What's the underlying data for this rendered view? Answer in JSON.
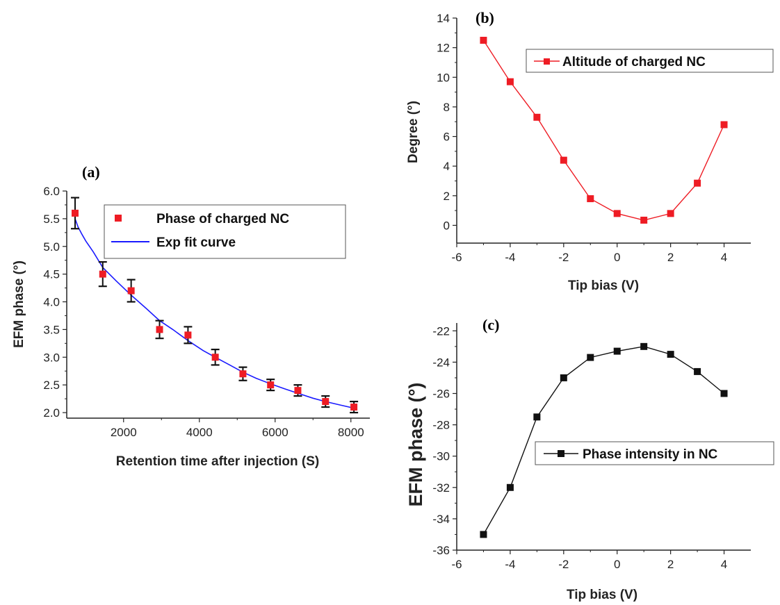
{
  "chart_data": [
    {
      "panel": "(a)",
      "type": "scatter",
      "xlabel": "Retention time after injection (S)",
      "ylabel": "EFM phase (°)",
      "xlim": [
        500,
        8500
      ],
      "ylim": [
        1.9,
        6.0
      ],
      "xticks": [
        2000,
        4000,
        6000,
        8000
      ],
      "yticks": [
        2.0,
        2.5,
        3.0,
        3.5,
        4.0,
        4.5,
        5.0,
        5.5,
        6.0
      ],
      "legend_position": "top-right",
      "marker_color": "#ee1c24",
      "fit_color": "#1a1aff",
      "series": [
        {
          "name": "Phase of charged NC",
          "x": [
            720,
            1450,
            2200,
            2950,
            3700,
            4420,
            5150,
            5880,
            6600,
            7330,
            8080
          ],
          "y": [
            5.6,
            4.5,
            4.2,
            3.5,
            3.4,
            3.0,
            2.7,
            2.5,
            2.4,
            2.2,
            2.1
          ],
          "err": [
            0.28,
            0.22,
            0.2,
            0.16,
            0.15,
            0.14,
            0.12,
            0.1,
            0.1,
            0.1,
            0.1
          ]
        },
        {
          "name": "Exp fit curve",
          "x": [
            720,
            800,
            900,
            1000,
            1200,
            1450,
            1800,
            2200,
            2600,
            2950,
            3300,
            3700,
            4100,
            4420,
            4800,
            5150,
            5500,
            5880,
            6250,
            6600,
            7000,
            7330,
            7700,
            8080
          ],
          "y": [
            5.5,
            5.35,
            5.22,
            5.1,
            4.9,
            4.62,
            4.38,
            4.12,
            3.88,
            3.66,
            3.5,
            3.3,
            3.12,
            3.0,
            2.86,
            2.73,
            2.62,
            2.52,
            2.43,
            2.35,
            2.26,
            2.2,
            2.14,
            2.08
          ]
        }
      ]
    },
    {
      "panel": "(b)",
      "type": "line",
      "xlabel": "Tip bias (V)",
      "ylabel": "Degree (°)",
      "xlim": [
        -6,
        5
      ],
      "ylim": [
        -1.2,
        14
      ],
      "xticks": [
        -6,
        -4,
        -2,
        0,
        2,
        4
      ],
      "yticks": [
        0,
        2,
        4,
        6,
        8,
        10,
        12,
        14
      ],
      "legend_position": "top-right",
      "color": "#ee1c24",
      "series": [
        {
          "name": "Altitude of  charged NC",
          "x": [
            -5,
            -4,
            -3,
            -2,
            -1,
            0,
            1,
            2,
            3,
            4
          ],
          "y": [
            12.5,
            9.7,
            7.3,
            4.4,
            1.8,
            0.8,
            0.35,
            0.8,
            2.85,
            6.8
          ]
        }
      ]
    },
    {
      "panel": "(c)",
      "type": "line",
      "xlabel": "Tip bias (V)",
      "ylabel": "EFM phase (°)",
      "xlim": [
        -6,
        5
      ],
      "ylim": [
        -36,
        -21.5
      ],
      "xticks": [
        -6,
        -4,
        -2,
        0,
        2,
        4
      ],
      "yticks": [
        -36,
        -34,
        -32,
        -30,
        -28,
        -26,
        -24,
        -22
      ],
      "legend_position": "middle-right",
      "color": "#111111",
      "series": [
        {
          "name": "Phase intensity in NC",
          "x": [
            -5,
            -4,
            -3,
            -2,
            -1,
            0,
            1,
            2,
            3,
            4
          ],
          "y": [
            -35,
            -32,
            -27.5,
            -25,
            -23.7,
            -23.3,
            -23,
            -23.5,
            -24.6,
            -26
          ]
        }
      ]
    }
  ]
}
